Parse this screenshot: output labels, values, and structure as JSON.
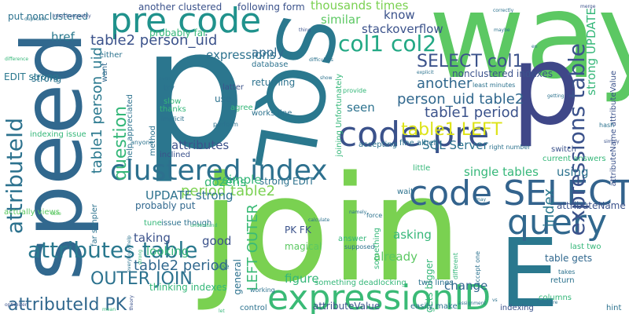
{
  "words": [
    {
      "text": "way"
    },
    {
      "text": "p"
    },
    {
      "text": "join"
    },
    {
      "text": "SQL"
    },
    {
      "text": "speed"
    },
    {
      "text": "p"
    },
    {
      "text": "E"
    },
    {
      "text": "pre code"
    },
    {
      "text": "code pre"
    },
    {
      "text": "code SELECT"
    },
    {
      "text": "expressionID"
    },
    {
      "text": "query"
    },
    {
      "text": "clustered index"
    },
    {
      "text": "attributeId"
    },
    {
      "text": "expressions table"
    },
    {
      "text": "attributes table"
    },
    {
      "text": "col1 col2"
    },
    {
      "text": "SELECT col1"
    },
    {
      "text": "OUTER JOIN"
    },
    {
      "text": "attributeId PK"
    },
    {
      "text": "table1 LEFT"
    },
    {
      "text": "question"
    },
    {
      "text": "table1 person_uid"
    },
    {
      "text": "LEFT OUTER"
    },
    {
      "text": "person_uid table2"
    },
    {
      "text": "table2 person_uid"
    },
    {
      "text": "table2 period"
    },
    {
      "text": "table1 period"
    },
    {
      "text": "period table2"
    },
    {
      "text": "another"
    },
    {
      "text": "index"
    },
    {
      "text": "thousands times"
    },
    {
      "text": "know"
    },
    {
      "text": "stackoverflow"
    },
    {
      "text": "apply"
    },
    {
      "text": "SQL Server"
    },
    {
      "text": "UPDATE strong"
    },
    {
      "text": "strong UPDATE"
    },
    {
      "text": "another clustered"
    },
    {
      "text": "put nonclustered"
    },
    {
      "text": "expressions"
    },
    {
      "text": "probably far"
    },
    {
      "text": "href"
    },
    {
      "text": "similar"
    },
    {
      "text": "EDIT strong"
    },
    {
      "text": "strong EDIT"
    },
    {
      "text": "dozens"
    },
    {
      "text": "attributes"
    },
    {
      "text": "simple"
    },
    {
      "text": "probably put"
    },
    {
      "text": "taking"
    },
    {
      "text": "good"
    },
    {
      "text": "looking"
    },
    {
      "text": "PK FK"
    },
    {
      "text": "magical"
    },
    {
      "text": "asking"
    },
    {
      "text": "already"
    },
    {
      "text": "figure"
    },
    {
      "text": "gets bigger"
    },
    {
      "text": "change"
    },
    {
      "text": "table gets"
    },
    {
      "text": "thinking indexes"
    },
    {
      "text": "attributeValue"
    },
    {
      "text": "general"
    },
    {
      "text": "attributeName"
    },
    {
      "text": "using"
    },
    {
      "text": "single tables"
    },
    {
      "text": "returning"
    },
    {
      "text": "seen"
    },
    {
      "text": "use"
    },
    {
      "text": "nonclustered indexes"
    },
    {
      "text": "strong"
    },
    {
      "text": "attributeName attributeValue"
    },
    {
      "text": "following form"
    },
    {
      "text": "database"
    },
    {
      "text": "indexing issue"
    },
    {
      "text": "either"
    },
    {
      "text": "want"
    },
    {
      "text": "try"
    },
    {
      "text": "help appreciated"
    },
    {
      "text": "latter"
    },
    {
      "text": "works fine"
    },
    {
      "text": "slow"
    },
    {
      "text": "thanks"
    },
    {
      "text": "agree"
    },
    {
      "text": "accepting"
    },
    {
      "text": "joining Unfortunately"
    },
    {
      "text": "fine albeit"
    },
    {
      "text": "little"
    },
    {
      "text": "switch"
    },
    {
      "text": "current answers"
    },
    {
      "text": "issue though"
    },
    {
      "text": "far simpler"
    },
    {
      "text": "wait"
    },
    {
      "text": "tune"
    },
    {
      "text": "answer"
    },
    {
      "text": "something"
    },
    {
      "text": "return"
    },
    {
      "text": "columns"
    },
    {
      "text": "last two"
    },
    {
      "text": "something deadlocking"
    },
    {
      "text": "two lines"
    },
    {
      "text": "actually views"
    },
    {
      "text": "control"
    },
    {
      "text": "easily make"
    },
    {
      "text": "indexing"
    },
    {
      "text": "hint"
    },
    {
      "text": "inclined"
    },
    {
      "text": "method"
    },
    {
      "text": "least minutes"
    },
    {
      "text": "explicit"
    },
    {
      "text": "provide"
    },
    {
      "text": "supposed"
    },
    {
      "text": "perform"
    },
    {
      "text": "implicit"
    },
    {
      "text": "working"
    },
    {
      "text": "force"
    },
    {
      "text": "different"
    },
    {
      "text": "accept one"
    },
    {
      "text": "takes"
    },
    {
      "text": "hash"
    },
    {
      "text": "getting"
    },
    {
      "text": "simply"
    },
    {
      "text": "merge"
    },
    {
      "text": "correctly"
    },
    {
      "text": "interchangeably"
    },
    {
      "text": "duplicate"
    },
    {
      "text": "difference"
    },
    {
      "text": "difficulties"
    },
    {
      "text": "thing"
    },
    {
      "text": "show"
    },
    {
      "text": "even"
    },
    {
      "text": "right number"
    },
    {
      "text": "anyone"
    },
    {
      "text": "everybody help"
    },
    {
      "text": "case"
    },
    {
      "text": "strong"
    },
    {
      "text": "compare"
    },
    {
      "text": "assignment"
    },
    {
      "text": "namely"
    },
    {
      "text": "able"
    },
    {
      "text": "optimizer"
    },
    {
      "text": "theory"
    },
    {
      "text": "vs"
    },
    {
      "text": "let"
    },
    {
      "text": "mean"
    },
    {
      "text": "may"
    },
    {
      "text": "calculate"
    },
    {
      "text": "understand"
    },
    {
      "text": "en"
    },
    {
      "text": "maybe"
    }
  ]
}
